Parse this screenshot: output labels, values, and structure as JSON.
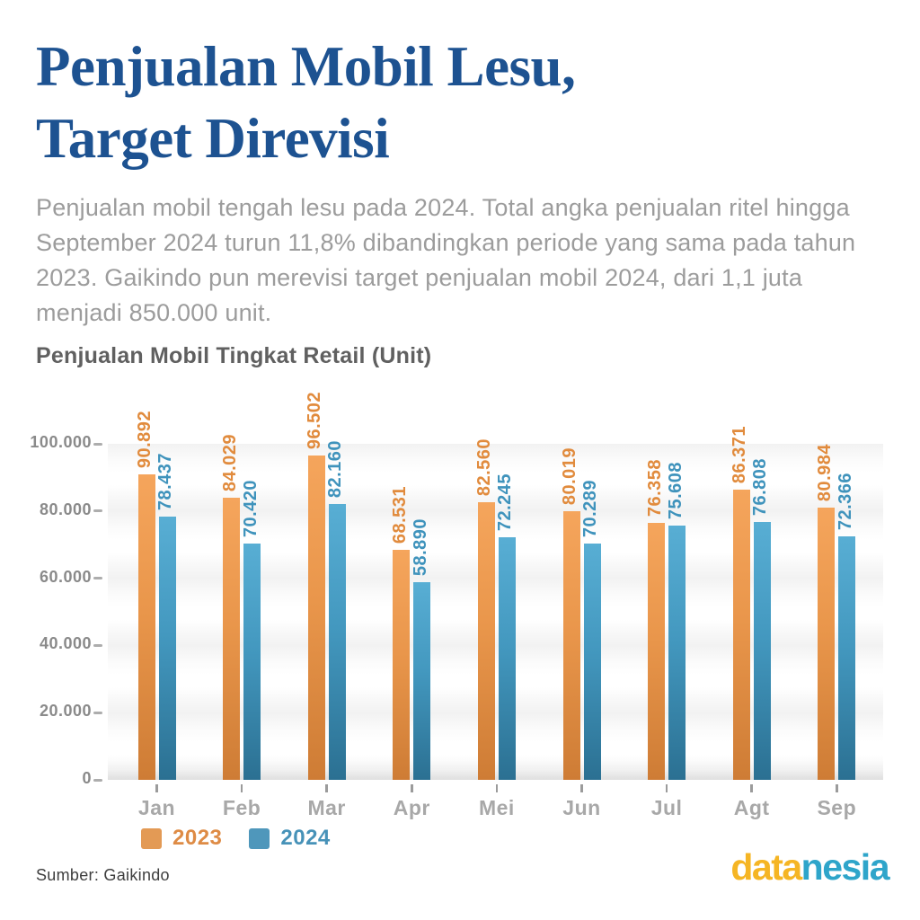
{
  "page": {
    "title_line1": "Penjualan Mobil Lesu,",
    "title_line2": "Target Direvisi",
    "description": "Penjualan mobil tengah lesu pada 2024. Total angka penjualan ritel hingga September 2024 turun 11,8% dibandingkan periode yang sama pada tahun 2023. Gaikindo pun merevisi target penjualan mobil 2024, dari 1,1 juta menjadi 850.000 unit.",
    "source": "Sumber: Gaikindo",
    "logo_part1": "data",
    "logo_part2": "nesia"
  },
  "colors": {
    "title_blue": "#1D5291",
    "body_gray": "#9C9C9C",
    "bar_2023_top": "#F5A55C",
    "bar_2023_bottom": "#CE7C35",
    "bar_2024_top": "#58AED4",
    "bar_2024_bottom": "#2B7092",
    "label_2023": "#E18B3D",
    "label_2024": "#3F93BC",
    "logo_yellow": "#F5B524",
    "logo_cyan": "#2EA5CA"
  },
  "chart_data": {
    "type": "bar",
    "title": "Penjualan Mobil Tingkat Retail (Unit)",
    "categories": [
      "Jan",
      "Feb",
      "Mar",
      "Apr",
      "Mei",
      "Jun",
      "Jul",
      "Agt",
      "Sep"
    ],
    "series": [
      {
        "name": "2023",
        "values": [
          90892,
          84029,
          96502,
          68531,
          82560,
          80019,
          76358,
          86371,
          80984
        ],
        "labels": [
          "90.892",
          "84.029",
          "96.502",
          "68.531",
          "82.560",
          "80.019",
          "76.358",
          "86.371",
          "80.984"
        ]
      },
      {
        "name": "2024",
        "values": [
          78437,
          70420,
          82160,
          58890,
          72245,
          70289,
          75608,
          76808,
          72366
        ],
        "labels": [
          "78.437",
          "70.420",
          "82.160",
          "58.890",
          "72.245",
          "70.289",
          "75.608",
          "76.808",
          "72.366"
        ]
      }
    ],
    "xlabel": "",
    "ylabel": "",
    "ylim": [
      0,
      100000
    ],
    "yticks": [
      "0",
      "20.000",
      "40.000",
      "60.000",
      "80.000",
      "100.000"
    ],
    "grid": "subtle horizontal bands",
    "legend_position": "bottom-left",
    "value_label_rotation": 90
  }
}
